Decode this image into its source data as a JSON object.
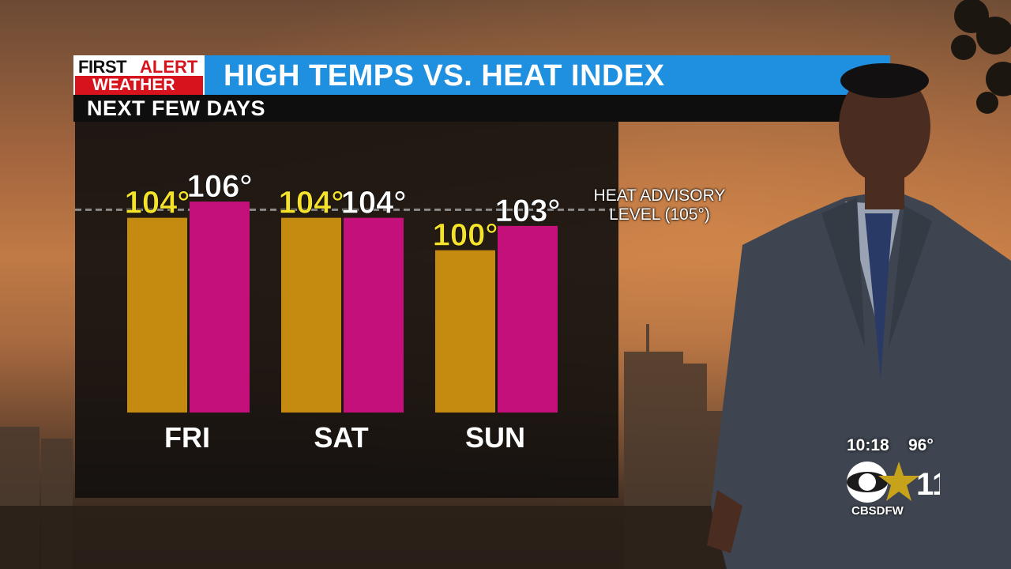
{
  "header": {
    "logo_line1_a": "FIRST",
    "logo_line1_b": "ALERT",
    "logo_line2": "WEATHER",
    "title": "HIGH TEMPS VS. HEAT INDEX",
    "subtitle": "NEXT FEW DAYS"
  },
  "advisory": {
    "line1": "HEAT ADVISORY",
    "line2": "LEVEL (105°)"
  },
  "chart_data": {
    "type": "bar",
    "categories": [
      "FRI",
      "SAT",
      "SUN"
    ],
    "series": [
      {
        "values": [
          104,
          104,
          100
        ],
        "labels": [
          "104°",
          "104°",
          "100°"
        ],
        "color": "#c58a10",
        "label_color": "#f5e22a"
      },
      {
        "values": [
          106,
          104,
          103
        ],
        "labels": [
          "106°",
          "104°",
          "103°"
        ],
        "color": "#c4107a",
        "label_color": "#ffffff"
      }
    ],
    "reference_line": {
      "value": 105
    },
    "ylim": [
      80,
      110
    ],
    "grid": false
  },
  "bug": {
    "time": "10:18",
    "temp": "96°",
    "handle": "CBSDFW",
    "channel": "11"
  },
  "colors": {
    "title_bar": "#1f8fe0",
    "logo_red": "#d7141d",
    "panel": "#12100e"
  }
}
